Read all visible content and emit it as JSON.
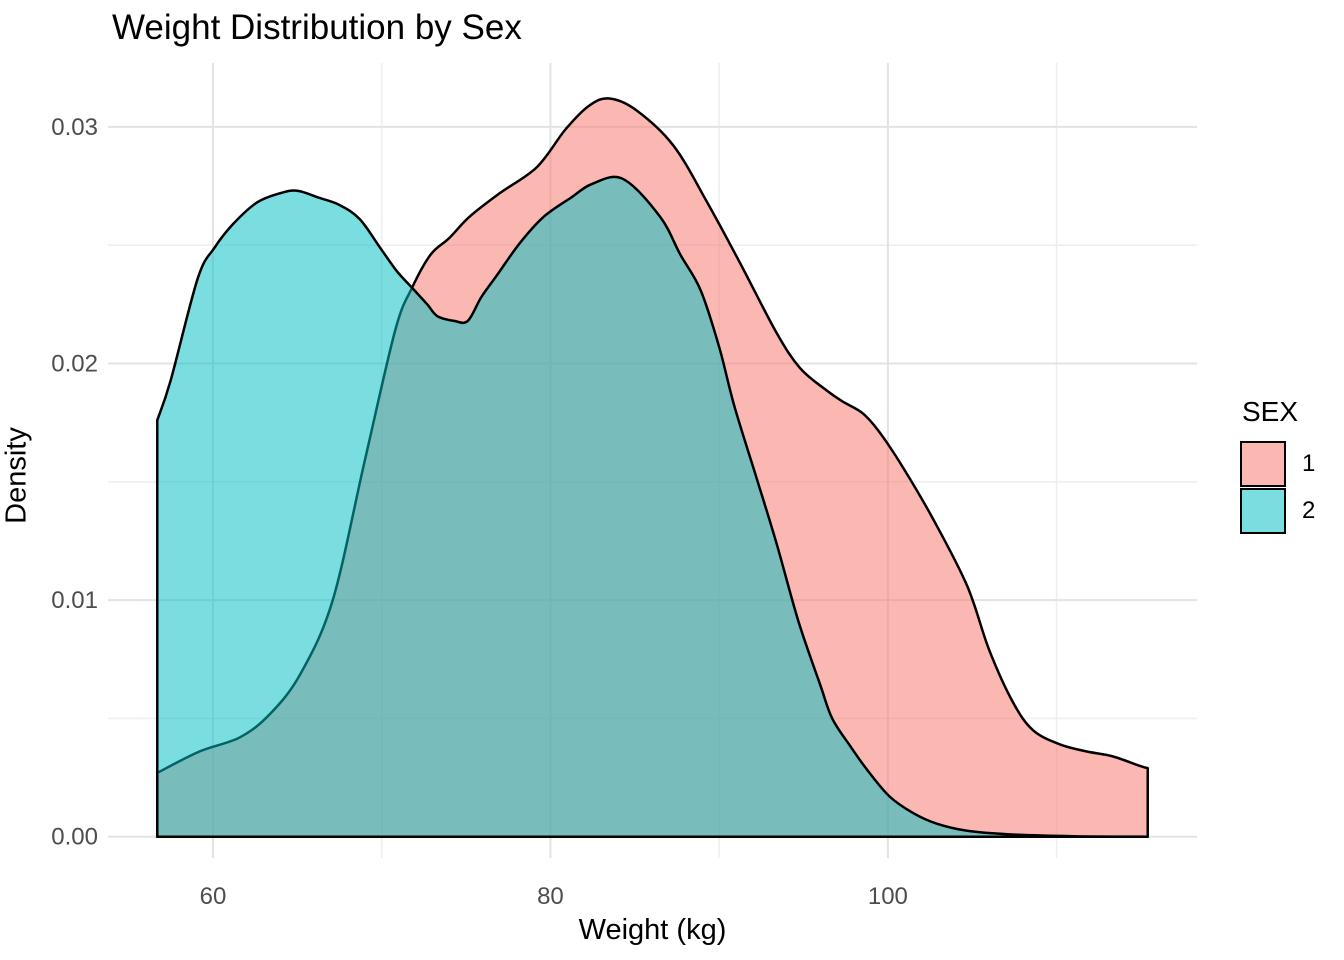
{
  "chart_data": {
    "type": "area",
    "title": "Weight Distribution by Sex",
    "xlabel": "Weight (kg)",
    "ylabel": "Density",
    "legend_title": "SEX",
    "legend_position": "right",
    "grid": true,
    "xlim": [
      53.78,
      118.32
    ],
    "ylim": [
      -0.0009,
      0.0327
    ],
    "x_major_ticks": [
      60,
      80,
      100
    ],
    "x_minor_ticks": [
      70,
      90,
      110
    ],
    "x_tick_labels": [
      "60",
      "80",
      "100"
    ],
    "y_major_ticks": [
      0,
      0.01,
      0.02,
      0.03
    ],
    "y_minor_ticks": [
      0.005,
      0.015,
      0.025
    ],
    "y_tick_labels": [
      "0.00",
      "0.01",
      "0.02",
      "0.03"
    ],
    "baseline": 0,
    "fill_alpha": 0.52,
    "stroke_color": "#000000",
    "series": [
      {
        "name": "1",
        "color": "#F8766D",
        "points": [
          [
            56.7,
            0.0027
          ],
          [
            59.2,
            0.0036
          ],
          [
            61.6,
            0.0042
          ],
          [
            63.4,
            0.0052
          ],
          [
            65.2,
            0.0069
          ],
          [
            67.1,
            0.01
          ],
          [
            69.0,
            0.0159
          ],
          [
            70.8,
            0.0214
          ],
          [
            71.8,
            0.0232
          ],
          [
            72.9,
            0.0246
          ],
          [
            74.0,
            0.0253
          ],
          [
            75.2,
            0.0262
          ],
          [
            77.0,
            0.0272
          ],
          [
            79.2,
            0.0283
          ],
          [
            80.9,
            0.0299
          ],
          [
            82.3,
            0.0309
          ],
          [
            83.5,
            0.0312
          ],
          [
            85.1,
            0.0307
          ],
          [
            87.3,
            0.0292
          ],
          [
            89.3,
            0.0268
          ],
          [
            91.2,
            0.0243
          ],
          [
            93.4,
            0.0213
          ],
          [
            94.8,
            0.0198
          ],
          [
            96.3,
            0.0189
          ],
          [
            97.3,
            0.0184
          ],
          [
            98.5,
            0.0179
          ],
          [
            99.5,
            0.0171
          ],
          [
            100.9,
            0.0156
          ],
          [
            102.7,
            0.0134
          ],
          [
            104.7,
            0.0106
          ],
          [
            106.0,
            0.0079
          ],
          [
            107.4,
            0.0057
          ],
          [
            108.6,
            0.0045
          ],
          [
            110.2,
            0.0039
          ],
          [
            111.8,
            0.0036
          ],
          [
            113.3,
            0.0034
          ],
          [
            114.9,
            0.003
          ],
          [
            115.4,
            0.0029
          ]
        ]
      },
      {
        "name": "2",
        "color": "#00BFC4",
        "points": [
          [
            56.7,
            0.0176
          ],
          [
            57.5,
            0.0193
          ],
          [
            59.1,
            0.0236
          ],
          [
            60.1,
            0.0249
          ],
          [
            61.2,
            0.0259
          ],
          [
            62.6,
            0.0268
          ],
          [
            64.0,
            0.0272
          ],
          [
            65.0,
            0.0273
          ],
          [
            66.3,
            0.027
          ],
          [
            67.5,
            0.0267
          ],
          [
            68.7,
            0.0261
          ],
          [
            69.9,
            0.0249
          ],
          [
            70.9,
            0.0239
          ],
          [
            71.8,
            0.0232
          ],
          [
            72.7,
            0.0225
          ],
          [
            73.3,
            0.022
          ],
          [
            74.3,
            0.0218
          ],
          [
            75.1,
            0.0218
          ],
          [
            75.9,
            0.0228
          ],
          [
            76.8,
            0.0237
          ],
          [
            78.2,
            0.0251
          ],
          [
            79.6,
            0.0262
          ],
          [
            81.2,
            0.027
          ],
          [
            82.5,
            0.0276
          ],
          [
            84.3,
            0.0278
          ],
          [
            86.5,
            0.0262
          ],
          [
            87.7,
            0.0246
          ],
          [
            88.9,
            0.0231
          ],
          [
            90.0,
            0.0207
          ],
          [
            90.9,
            0.0182
          ],
          [
            92.2,
            0.0152
          ],
          [
            93.4,
            0.0124
          ],
          [
            94.7,
            0.0091
          ],
          [
            96.0,
            0.0064
          ],
          [
            96.7,
            0.005
          ],
          [
            97.8,
            0.0038
          ],
          [
            98.8,
            0.0028
          ],
          [
            100.1,
            0.0017
          ],
          [
            101.5,
            0.001
          ],
          [
            102.9,
            0.00055
          ],
          [
            104.7,
            0.00025
          ],
          [
            107.2,
            0.0001
          ],
          [
            111.0,
            2e-05
          ],
          [
            115.4,
            0.0
          ]
        ]
      }
    ],
    "grid_major_color": "#e3e3e3",
    "grid_minor_color": "#efefef",
    "tick_label_color": "#4d4d4d"
  }
}
